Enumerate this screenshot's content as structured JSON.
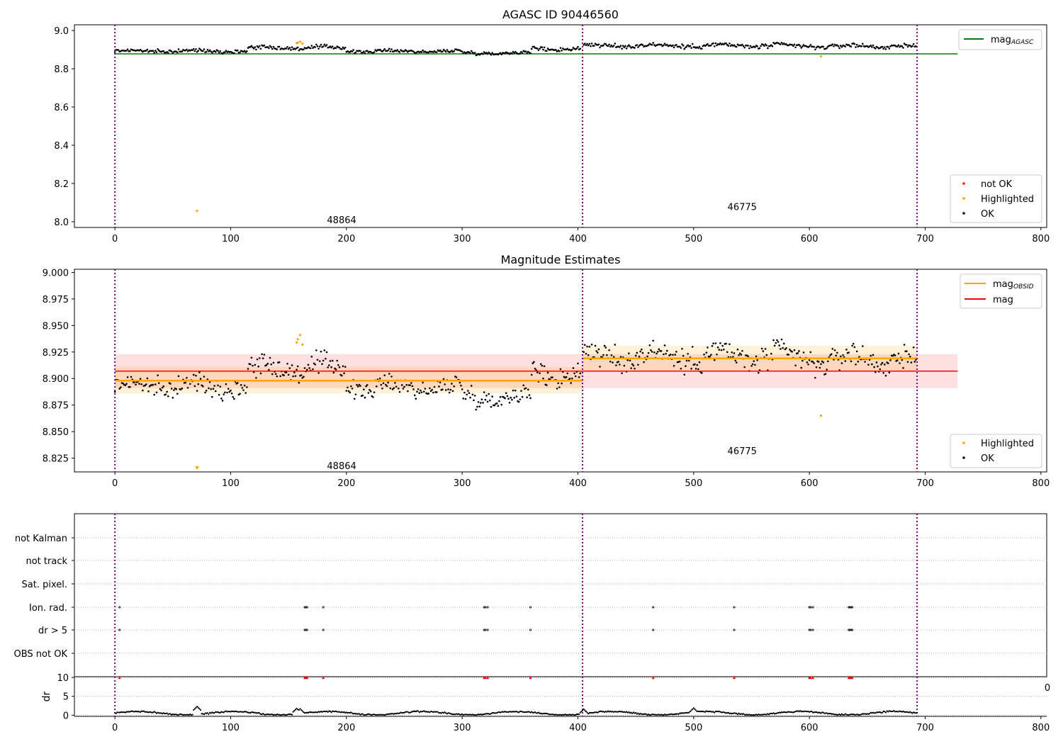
{
  "figure": {
    "background": "#ffffff"
  },
  "chart_data": [
    {
      "id": "top",
      "type": "scatter",
      "title": "AGASC ID 90446560",
      "xlim": [
        -35,
        805
      ],
      "ylim": [
        7.97,
        9.03
      ],
      "xticks": [
        0,
        100,
        200,
        300,
        400,
        500,
        600,
        700,
        800
      ],
      "yticks": [
        8.0,
        8.2,
        8.4,
        8.6,
        8.8,
        9.0
      ],
      "ytick_format": 1,
      "obsid_boundaries": [
        0,
        404,
        693
      ],
      "obsid_labels": [
        {
          "text": "48864",
          "x": 202,
          "y": 8.01
        },
        {
          "text": "46775",
          "x": 548,
          "y": 8.08
        }
      ],
      "hlines": [
        {
          "name": "magAGASC",
          "y": 8.878,
          "x_range": [
            0,
            728
          ],
          "color": "#008000"
        }
      ],
      "legend_upper": [
        {
          "label": "mag",
          "sub": "AGASC",
          "color": "#008000",
          "kind": "line"
        }
      ],
      "legend_lower": [
        {
          "label": "not OK",
          "color": "#ff0000",
          "kind": "dot"
        },
        {
          "label": "Highlighted",
          "color": "#ffa500",
          "kind": "dot"
        },
        {
          "label": "OK",
          "color": "#000000",
          "kind": "dot"
        }
      ],
      "ok_segments": [
        {
          "x_range": [
            0,
            115
          ],
          "base": 8.893,
          "noise": 0.008
        },
        {
          "x_range": [
            115,
            200
          ],
          "base": 8.91,
          "noise": 0.01
        },
        {
          "x_range": [
            200,
            300
          ],
          "base": 8.892,
          "noise": 0.008
        },
        {
          "x_range": [
            300,
            360
          ],
          "base": 8.883,
          "noise": 0.008
        },
        {
          "x_range": [
            360,
            403
          ],
          "base": 8.905,
          "noise": 0.01
        },
        {
          "x_range": [
            405,
            580
          ],
          "base": 8.921,
          "noise": 0.012
        },
        {
          "x_range": [
            580,
            693
          ],
          "base": 8.918,
          "noise": 0.011
        }
      ],
      "highlighted": [
        {
          "x": 71,
          "y": 8.057
        },
        {
          "x": 157,
          "y": 8.934
        },
        {
          "x": 158,
          "y": 8.937
        },
        {
          "x": 160,
          "y": 8.941
        },
        {
          "x": 162,
          "y": 8.932
        },
        {
          "x": 610,
          "y": 8.865
        }
      ]
    },
    {
      "id": "middle",
      "type": "scatter",
      "title": "Magnitude Estimates",
      "xlim": [
        -35,
        805
      ],
      "ylim": [
        8.812,
        9.003
      ],
      "xticks": [
        0,
        100,
        200,
        300,
        400,
        500,
        600,
        700,
        800
      ],
      "yticks": [
        8.825,
        8.85,
        8.875,
        8.9,
        8.925,
        8.95,
        8.975,
        9.0
      ],
      "ytick_format": 3,
      "obsid_boundaries": [
        0,
        404,
        693
      ],
      "obsid_labels": [
        {
          "text": "48864",
          "x": 202,
          "y": 8.818
        },
        {
          "text": "46775",
          "x": 548,
          "y": 8.832
        }
      ],
      "mag": {
        "name": "mag",
        "y": 8.907,
        "band": [
          8.891,
          8.923
        ],
        "x_range": [
          0,
          728
        ],
        "color": "#ff0000"
      },
      "mag_obsid": [
        {
          "x_range": [
            0,
            404
          ],
          "y": 8.898,
          "band": [
            8.886,
            8.911
          ]
        },
        {
          "x_range": [
            404,
            693
          ],
          "y": 8.919,
          "band": [
            8.907,
            8.931
          ]
        }
      ],
      "legend_upper": [
        {
          "label": "mag",
          "sub": "OBSID",
          "color": "#ffa500",
          "kind": "line"
        },
        {
          "label": "mag",
          "sub": "",
          "color": "#ff0000",
          "kind": "line"
        }
      ],
      "legend_lower": [
        {
          "label": "Highlighted",
          "color": "#ffa500",
          "kind": "dot"
        },
        {
          "label": "OK",
          "color": "#000000",
          "kind": "dot"
        }
      ],
      "ok_segments": [
        {
          "x_range": [
            0,
            115
          ],
          "base": 8.893,
          "noise": 0.008
        },
        {
          "x_range": [
            115,
            200
          ],
          "base": 8.91,
          "noise": 0.01
        },
        {
          "x_range": [
            200,
            300
          ],
          "base": 8.892,
          "noise": 0.008
        },
        {
          "x_range": [
            300,
            360
          ],
          "base": 8.883,
          "noise": 0.008
        },
        {
          "x_range": [
            360,
            403
          ],
          "base": 8.905,
          "noise": 0.01
        },
        {
          "x_range": [
            405,
            580
          ],
          "base": 8.921,
          "noise": 0.012
        },
        {
          "x_range": [
            580,
            693
          ],
          "base": 8.918,
          "noise": 0.011
        }
      ],
      "highlighted": [
        {
          "x": 157,
          "y": 8.934
        },
        {
          "x": 158,
          "y": 8.937
        },
        {
          "x": 160,
          "y": 8.941
        },
        {
          "x": 162,
          "y": 8.932
        },
        {
          "x": 610,
          "y": 8.865
        }
      ],
      "offscale_marker": {
        "x": 71,
        "color": "#ffa500"
      }
    },
    {
      "id": "flags",
      "type": "scatter",
      "title": "",
      "xlim": [
        -35,
        805
      ],
      "categories": [
        "not Kalman",
        "not track",
        "Sat. pixel.",
        "Ion. rad.",
        "dr > 5",
        "OBS not OK"
      ],
      "obsid_boundaries": [
        0,
        404,
        693
      ],
      "flag_points": {
        "Ion. rad.": [
          4,
          164,
          165,
          166,
          180,
          319,
          320,
          322,
          359,
          465,
          535,
          600,
          601,
          603,
          634,
          635,
          636,
          637
        ],
        "dr > 5": [
          4,
          164,
          165,
          166,
          180,
          319,
          320,
          322,
          359,
          465,
          535,
          600,
          601,
          603,
          634,
          635,
          636,
          637
        ]
      },
      "edge_tick_text": "0"
    },
    {
      "id": "dr",
      "type": "line",
      "title": "",
      "xlabel": "",
      "ylabel": "dr",
      "xlim": [
        -35,
        805
      ],
      "ylim": [
        -0.3,
        10.2
      ],
      "xticks": [
        0,
        100,
        200,
        300,
        400,
        500,
        600,
        700,
        800
      ],
      "yticks": [
        0,
        5,
        10
      ],
      "obsid_boundaries": [
        0,
        404,
        693
      ],
      "marker_points_x": [
        4,
        164,
        165,
        166,
        180,
        319,
        320,
        322,
        359,
        465,
        535,
        600,
        601,
        603,
        634,
        635,
        636,
        637
      ],
      "marker_y": 10,
      "marker_color": "#ff0000",
      "dr_x_range": [
        0,
        693
      ],
      "dr_bumps": [
        {
          "x": 71,
          "y": 2.3
        },
        {
          "x": 157,
          "y": 1.8
        },
        {
          "x": 160,
          "y": 1.7
        },
        {
          "x": 405,
          "y": 1.6
        },
        {
          "x": 500,
          "y": 1.9
        }
      ]
    }
  ]
}
